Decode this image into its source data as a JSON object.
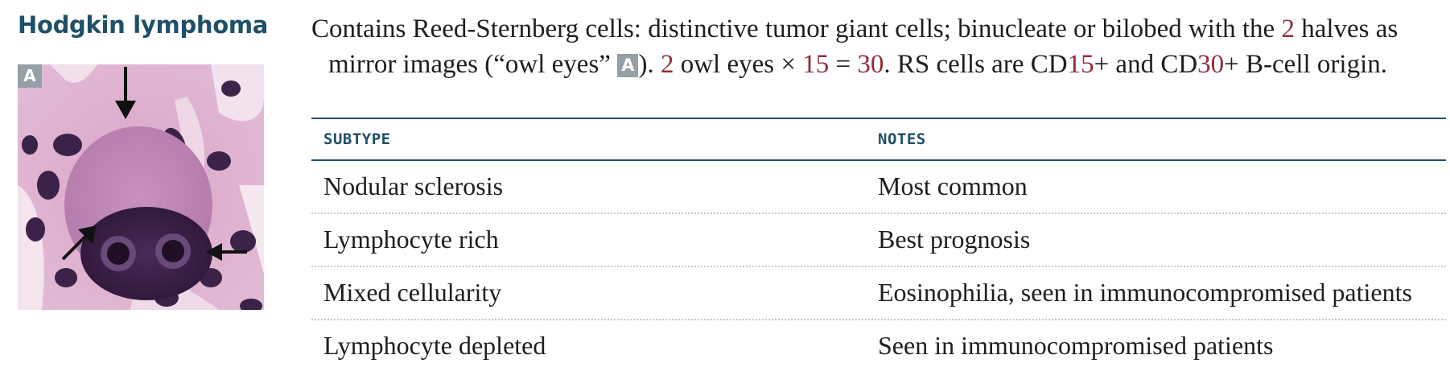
{
  "heading": "Hodgkin lymphoma",
  "figure": {
    "label": "A"
  },
  "description": {
    "part1": "Contains Reed-Sternberg cells: distinctive tumor giant cells; binucleate or bilobed with the ",
    "num_2a": "2",
    "part2": " halves as mirror images (“owl eyes” ",
    "badge": "A",
    "part3": "). ",
    "num_2b": "2",
    "part4": " owl eyes × ",
    "num_15a": "15",
    "part5": " = ",
    "num_30a": "30",
    "part6": ". RS cells are CD",
    "num_15b": "15",
    "part7": "+ and CD",
    "num_30b": "30",
    "part8": "+ B-cell origin."
  },
  "table": {
    "headers": [
      "SUBTYPE",
      "NOTES"
    ],
    "rows": [
      {
        "subtype": "Nodular sclerosis",
        "notes": "Most common"
      },
      {
        "subtype": "Lymphocyte rich",
        "notes": "Best prognosis"
      },
      {
        "subtype": "Mixed cellularity",
        "notes": "Eosinophilia, seen in immunocompromised patients"
      },
      {
        "subtype": "Lymphocyte depleted",
        "notes": "Seen in immunocompromised patients"
      }
    ]
  },
  "colors": {
    "heading": "#1f5068",
    "accent_number": "#922c3a",
    "badge": "#94a0a6",
    "rule": "#1f5068"
  }
}
